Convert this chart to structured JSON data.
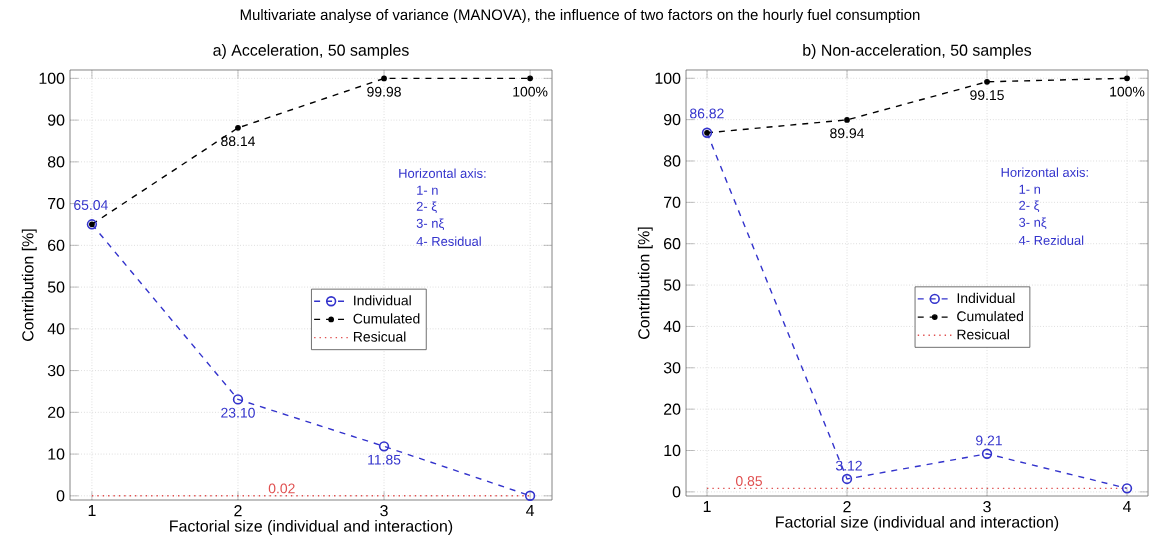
{
  "chart_data": [
    {
      "type": "line",
      "title": "a) Acceleration, 50 samples",
      "xlabel": "Factorial size (individual and interaction)",
      "ylabel": "Contribution [%]",
      "x": [
        1,
        2,
        3,
        4
      ],
      "xlim": [
        0.85,
        4.15
      ],
      "ylim": [
        -1,
        102
      ],
      "xticks": [
        1,
        2,
        3,
        4
      ],
      "yticks": [
        0,
        10,
        20,
        30,
        40,
        50,
        60,
        70,
        80,
        90,
        100
      ],
      "grid": true,
      "legend": "center",
      "line_style": "dashed",
      "series": [
        {
          "name": "Individual",
          "color": "#3333cc",
          "marker": "circle",
          "values": [
            65.04,
            23.1,
            11.85,
            0.02
          ],
          "value_labels": [
            "65.04",
            "23.10",
            "11.85",
            null
          ]
        },
        {
          "name": "Cumulated",
          "color": "#000000",
          "marker": "circle",
          "values": [
            65.04,
            88.14,
            99.98,
            100
          ],
          "value_labels": [
            null,
            "88.14",
            "99.98",
            "100%"
          ]
        },
        {
          "name": "Resicual",
          "color": "#e05050",
          "marker": "none",
          "line_style": "dotted",
          "values": [
            0.02,
            0.02,
            0.02,
            0.02
          ]
        }
      ],
      "annotations": [
        "Multivariate analyse of variance (MANOVA), the influence of two factors on the hourly fuel consumption",
        "Horizontal axis:",
        "1- n",
        "2- ξ",
        "3- nξ",
        "4- Residual",
        {
          "text": "0.02",
          "x": 2.3,
          "y": 0.02
        }
      ]
    },
    {
      "type": "line",
      "title": "b) Non-acceleration, 50 samples",
      "xlabel": "Factorial size (individual and interaction)",
      "ylabel": "Contribution [%]",
      "x": [
        1,
        2,
        3,
        4
      ],
      "xlim": [
        0.85,
        4.15
      ],
      "ylim": [
        -1,
        102
      ],
      "xticks": [
        1,
        2,
        3,
        4
      ],
      "yticks": [
        0,
        10,
        20,
        30,
        40,
        50,
        60,
        70,
        80,
        90,
        100
      ],
      "grid": true,
      "legend": "center",
      "line_style": "dashed",
      "series": [
        {
          "name": "Individual",
          "color": "#3333cc",
          "marker": "circle",
          "values": [
            86.82,
            3.12,
            9.21,
            0.85
          ],
          "value_labels": [
            "86.82",
            "3.12",
            "9.21",
            null
          ]
        },
        {
          "name": "Cumulated",
          "color": "#000000",
          "marker": "circle",
          "values": [
            86.82,
            89.94,
            99.15,
            100
          ],
          "value_labels": [
            null,
            "89.94",
            "99.15",
            "100%"
          ]
        },
        {
          "name": "Resicual",
          "color": "#e05050",
          "marker": "none",
          "line_style": "dotted",
          "values": [
            0.85,
            0.85,
            0.85,
            0.85
          ]
        }
      ],
      "annotations": [
        "Horizontal axis:",
        "1- n",
        "2- ξ",
        "3- nξ",
        "4- Rezidual",
        {
          "text": "0.85",
          "x": 1.3,
          "y": 0.85
        }
      ]
    }
  ]
}
